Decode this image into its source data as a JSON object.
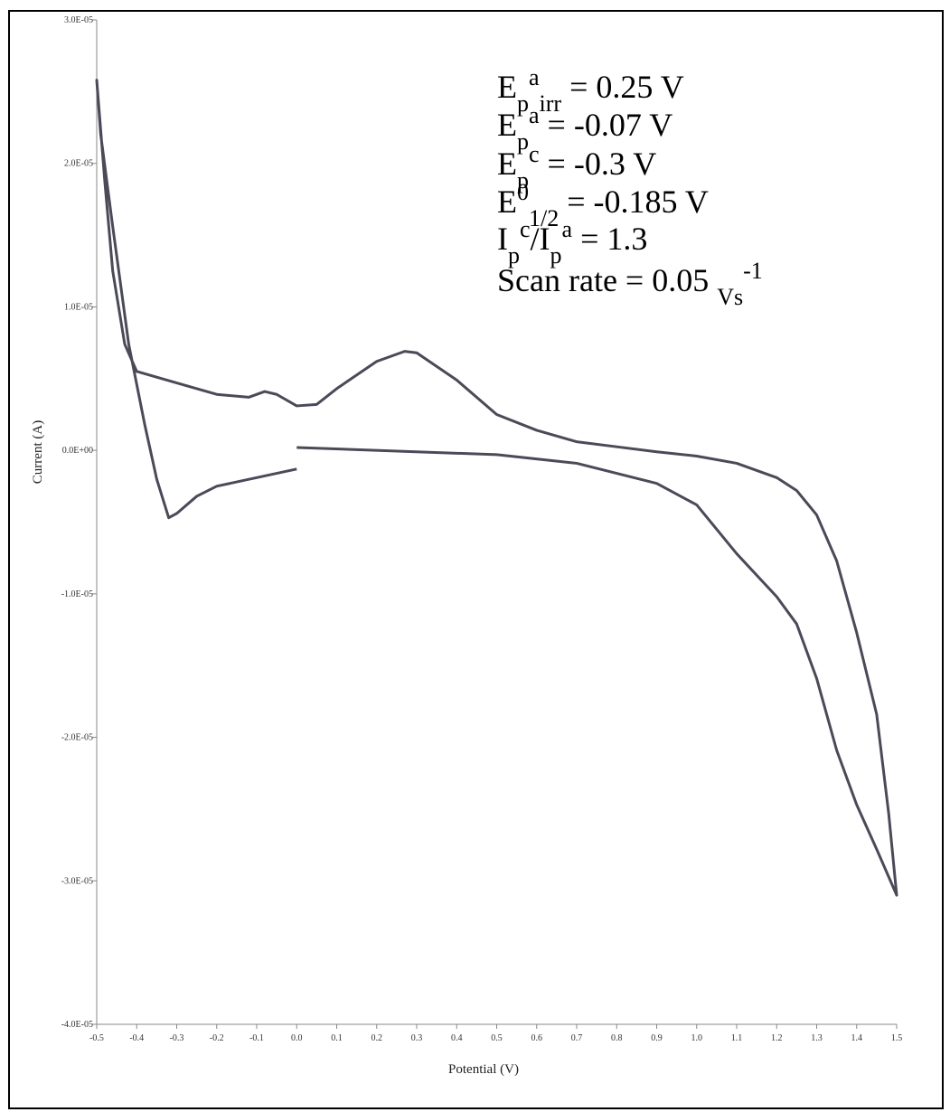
{
  "chart_data": {
    "type": "line",
    "xlabel": "Potential (V)",
    "ylabel": "Current (A)",
    "xlim": [
      -0.5,
      1.5
    ],
    "ylim": [
      -4e-05,
      3e-05
    ],
    "xticks": [
      -0.5,
      -0.4,
      -0.3,
      -0.2,
      -0.1,
      {
        "value": 0,
        "label": "0.0"
      },
      0.1,
      0.2,
      0.3,
      0.4,
      0.5,
      0.6,
      0.7,
      0.8,
      0.9,
      {
        "value": 1,
        "label": "1.0"
      },
      1.1,
      1.2,
      1.3,
      1.4,
      1.5
    ],
    "yticks": [
      {
        "value": -4e-05,
        "label": "-4.0E-05"
      },
      {
        "value": -3e-05,
        "label": "-3.0E-05"
      },
      {
        "value": -2e-05,
        "label": "-2.0E-05"
      },
      {
        "value": -1e-05,
        "label": "-1.0E-05"
      },
      {
        "value": 0,
        "label": "0.0E+00"
      },
      {
        "value": 1e-05,
        "label": "1.0E-05"
      },
      {
        "value": 2e-05,
        "label": "2.0E-05"
      },
      {
        "value": 3e-05,
        "label": "3.0E-05"
      }
    ],
    "color": "#4a4a58",
    "x": [
      0.0,
      0.5,
      0.7,
      0.9,
      1.0,
      1.1,
      1.2,
      1.25,
      1.3,
      1.35,
      1.4,
      1.45,
      1.5,
      1.48,
      1.45,
      1.4,
      1.35,
      1.3,
      1.25,
      1.2,
      1.1,
      1.0,
      0.9,
      0.8,
      0.7,
      0.6,
      0.5,
      0.4,
      0.3,
      0.27,
      0.2,
      0.1,
      0.05,
      0.0,
      -0.05,
      -0.08,
      -0.12,
      -0.2,
      -0.3,
      -0.4,
      -0.43,
      -0.46,
      -0.48,
      -0.5,
      -0.49,
      -0.46,
      -0.42,
      -0.38,
      -0.35,
      -0.32,
      -0.3,
      -0.25,
      -0.2,
      -0.1,
      0.0
    ],
    "values": [
      2e-07,
      -3e-07,
      -9e-07,
      -2.3e-06,
      -3.8e-06,
      -7.2e-06,
      -1.02e-05,
      -1.21e-05,
      -1.59e-05,
      -2.09e-05,
      -2.47e-05,
      -2.78e-05,
      -3.1e-05,
      -2.53e-05,
      -1.84e-05,
      -1.27e-05,
      -7.7e-06,
      -4.5e-06,
      -2.8e-06,
      -1.9e-06,
      -9e-07,
      -4e-07,
      -1e-07,
      2.5e-07,
      6e-07,
      1.4e-06,
      2.5e-06,
      4.9e-06,
      6.8e-06,
      6.9e-06,
      6.2e-06,
      4.3e-06,
      3.2e-06,
      3.1e-06,
      3.9e-06,
      4.1e-06,
      3.7e-06,
      3.9e-06,
      4.7e-06,
      5.5e-06,
      7.4e-06,
      1.25e-05,
      1.88e-05,
      2.58e-05,
      2.2e-05,
      1.56e-05,
      7.4e-06,
      1.8e-06,
      -2e-06,
      -4.7e-06,
      -4.4e-06,
      -3.2e-06,
      -2.5e-06,
      -1.9e-06,
      -1.3e-06
    ],
    "annotations": [
      [
        {
          "text": "E"
        },
        {
          "text": "p",
          "shift": "sub"
        },
        {
          "text": "a",
          "shift": "super"
        },
        {
          "text": "irr",
          "shift": "sub"
        },
        {
          "text": " = 0.25 V"
        }
      ],
      [
        {
          "text": "E"
        },
        {
          "text": "p",
          "shift": "sub"
        },
        {
          "text": "a",
          "shift": "super"
        },
        {
          "text": " = -0.07 V"
        }
      ],
      [
        {
          "text": "E"
        },
        {
          "text": "p",
          "shift": "sub"
        },
        {
          "text": "c",
          "shift": "super"
        },
        {
          "text": " = -0.3 V"
        }
      ],
      [
        {
          "text": "E"
        },
        {
          "text": "0",
          "shift": "super"
        },
        {
          "text": "1/2",
          "shift": "sub"
        },
        {
          "text": " = -0.185 V"
        }
      ],
      [
        {
          "text": "I"
        },
        {
          "text": "p",
          "shift": "sub"
        },
        {
          "text": "c",
          "shift": "super"
        },
        {
          "text": "/I"
        },
        {
          "text": "p",
          "shift": "sub"
        },
        {
          "text": "a",
          "shift": "super"
        },
        {
          "text": " = 1.3"
        }
      ],
      [
        {
          "text": "Scan rate = 0.05 "
        },
        {
          "text": "Vs",
          "shift": "sub"
        },
        {
          "text": "-1",
          "shift": "super"
        }
      ]
    ]
  }
}
